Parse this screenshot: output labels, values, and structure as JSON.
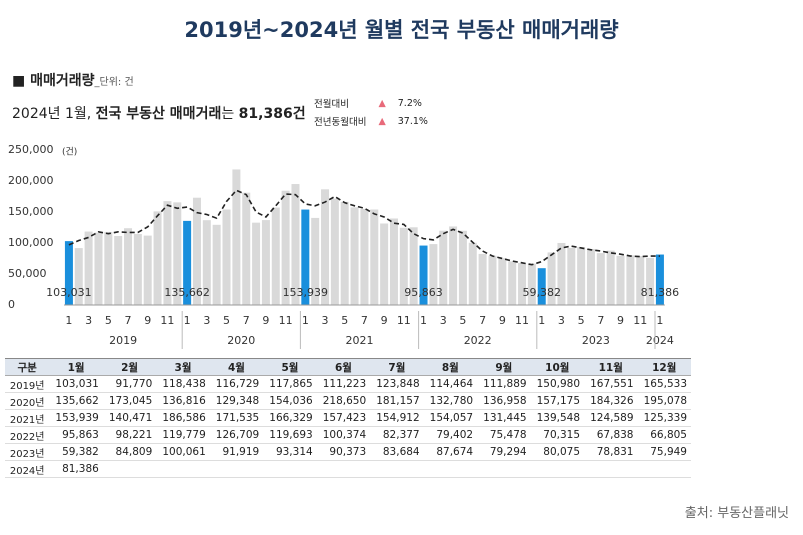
{
  "header": {
    "title": "2019년~2024년 월별 전국 부동산 매매거래량"
  },
  "subtitle": {
    "text": "■ 매매거래량",
    "unit": "_단위: 건"
  },
  "headline": {
    "parts": [
      "2024년 1월, ",
      "전국 부동산 매매거래",
      "는 ",
      "81,386건"
    ]
  },
  "comparison": {
    "rows": [
      [
        "전월대비",
        "7.2%"
      ],
      [
        "전년동월대비",
        "37.1%"
      ]
    ]
  },
  "chart_data": {
    "type": "bar",
    "y_unit": "(건)",
    "ylim": [
      0,
      250000
    ],
    "yticks": [
      0,
      {
        "value": 50000,
        "label": "50,000"
      },
      {
        "value": 100000,
        "label": "100,000"
      },
      {
        "value": 150000,
        "label": "150,000"
      },
      {
        "value": 200000,
        "label": "200,000"
      },
      {
        "value": 250000,
        "label": "250,000"
      }
    ],
    "categories": [
      "1",
      null,
      "3",
      null,
      "5",
      null,
      "7",
      null,
      "9",
      null,
      "11",
      null,
      "1",
      null,
      "3",
      null,
      "5",
      null,
      "7",
      null,
      "9",
      null,
      "11",
      null,
      "1",
      null,
      "3",
      null,
      "5",
      null,
      "7",
      null,
      "9",
      null,
      "11",
      null,
      "1",
      null,
      "3",
      null,
      "5",
      null,
      "7",
      null,
      "9",
      null,
      "11",
      null,
      "1",
      null,
      "3",
      null,
      "5",
      null,
      "7",
      null,
      "9",
      null,
      "11",
      null,
      "1"
    ],
    "years": [
      "2019",
      "2020",
      "2021",
      "2022",
      "2023",
      "2024"
    ],
    "values": [
      103031,
      91770,
      118438,
      116729,
      117865,
      111223,
      123848,
      114464,
      111889,
      150980,
      167551,
      165533,
      135662,
      173045,
      136816,
      129348,
      154036,
      218650,
      181157,
      132780,
      136958,
      157175,
      184326,
      195078,
      153939,
      140471,
      186586,
      171535,
      166329,
      157423,
      154912,
      154057,
      131445,
      139548,
      124589,
      125339,
      95863,
      98221,
      119779,
      126709,
      119693,
      100374,
      82377,
      79402,
      75478,
      70315,
      67838,
      66805,
      59382,
      84809,
      100061,
      91919,
      93314,
      90373,
      83684,
      87674,
      79294,
      80075,
      78831,
      75949,
      81386
    ],
    "value_labels": [
      "103,031",
      null,
      null,
      null,
      null,
      null,
      null,
      null,
      null,
      null,
      null,
      null,
      "135,662",
      null,
      null,
      null,
      null,
      null,
      null,
      null,
      null,
      null,
      null,
      null,
      "153,939",
      null,
      null,
      null,
      null,
      null,
      null,
      null,
      null,
      null,
      null,
      null,
      "95,863",
      null,
      null,
      null,
      null,
      null,
      null,
      null,
      null,
      null,
      null,
      null,
      "59,382",
      null,
      null,
      null,
      null,
      null,
      null,
      null,
      null,
      null,
      null,
      null,
      "81,386"
    ],
    "color": "#d9d9d9",
    "highlight_color": "#1a8fdc",
    "trend": {
      "color": "#222222",
      "dashed": true,
      "values": [
        97000,
        104000,
        109000,
        118000,
        115000,
        118000,
        117000,
        117000,
        126000,
        144000,
        161000,
        156000,
        158000,
        149000,
        146000,
        140000,
        167000,
        185000,
        178000,
        150000,
        142000,
        160000,
        179000,
        178000,
        163000,
        160000,
        166000,
        175000,
        165000,
        160000,
        156000,
        147000,
        142000,
        132000,
        130000,
        115000,
        107000,
        105000,
        115000,
        122000,
        116000,
        101000,
        87000,
        79000,
        75000,
        71000,
        68000,
        65000,
        70000,
        81000,
        92000,
        95000,
        92000,
        89000,
        87000,
        84000,
        82000,
        79000,
        78000,
        79000,
        79000
      ]
    }
  },
  "table": {
    "header": [
      "구분",
      "1월",
      "2월",
      "3월",
      "4월",
      "5월",
      "6월",
      "7월",
      "8월",
      "9월",
      "10월",
      "11월",
      "12월"
    ],
    "rows": [
      [
        "2019년",
        "103,031",
        "91,770",
        "118,438",
        "116,729",
        "117,865",
        "111,223",
        "123,848",
        "114,464",
        "111,889",
        "150,980",
        "167,551",
        "165,533"
      ],
      [
        "2020년",
        "135,662",
        "173,045",
        "136,816",
        "129,348",
        "154,036",
        "218,650",
        "181,157",
        "132,780",
        "136,958",
        "157,175",
        "184,326",
        "195,078"
      ],
      [
        "2021년",
        "153,939",
        "140,471",
        "186,586",
        "171,535",
        "166,329",
        "157,423",
        "154,912",
        "154,057",
        "131,445",
        "139,548",
        "124,589",
        "125,339"
      ],
      [
        "2022년",
        "95,863",
        "98,221",
        "119,779",
        "126,709",
        "119,693",
        "100,374",
        "82,377",
        "79,402",
        "75,478",
        "70,315",
        "67,838",
        "66,805"
      ],
      [
        "2023년",
        "59,382",
        "84,809",
        "100,061",
        "91,919",
        "93,314",
        "90,373",
        "83,684",
        "87,674",
        "79,294",
        "80,075",
        "78,831",
        "75,949"
      ],
      [
        "2024년",
        "81,386"
      ]
    ]
  },
  "source": "출처: 부동산플래닛"
}
